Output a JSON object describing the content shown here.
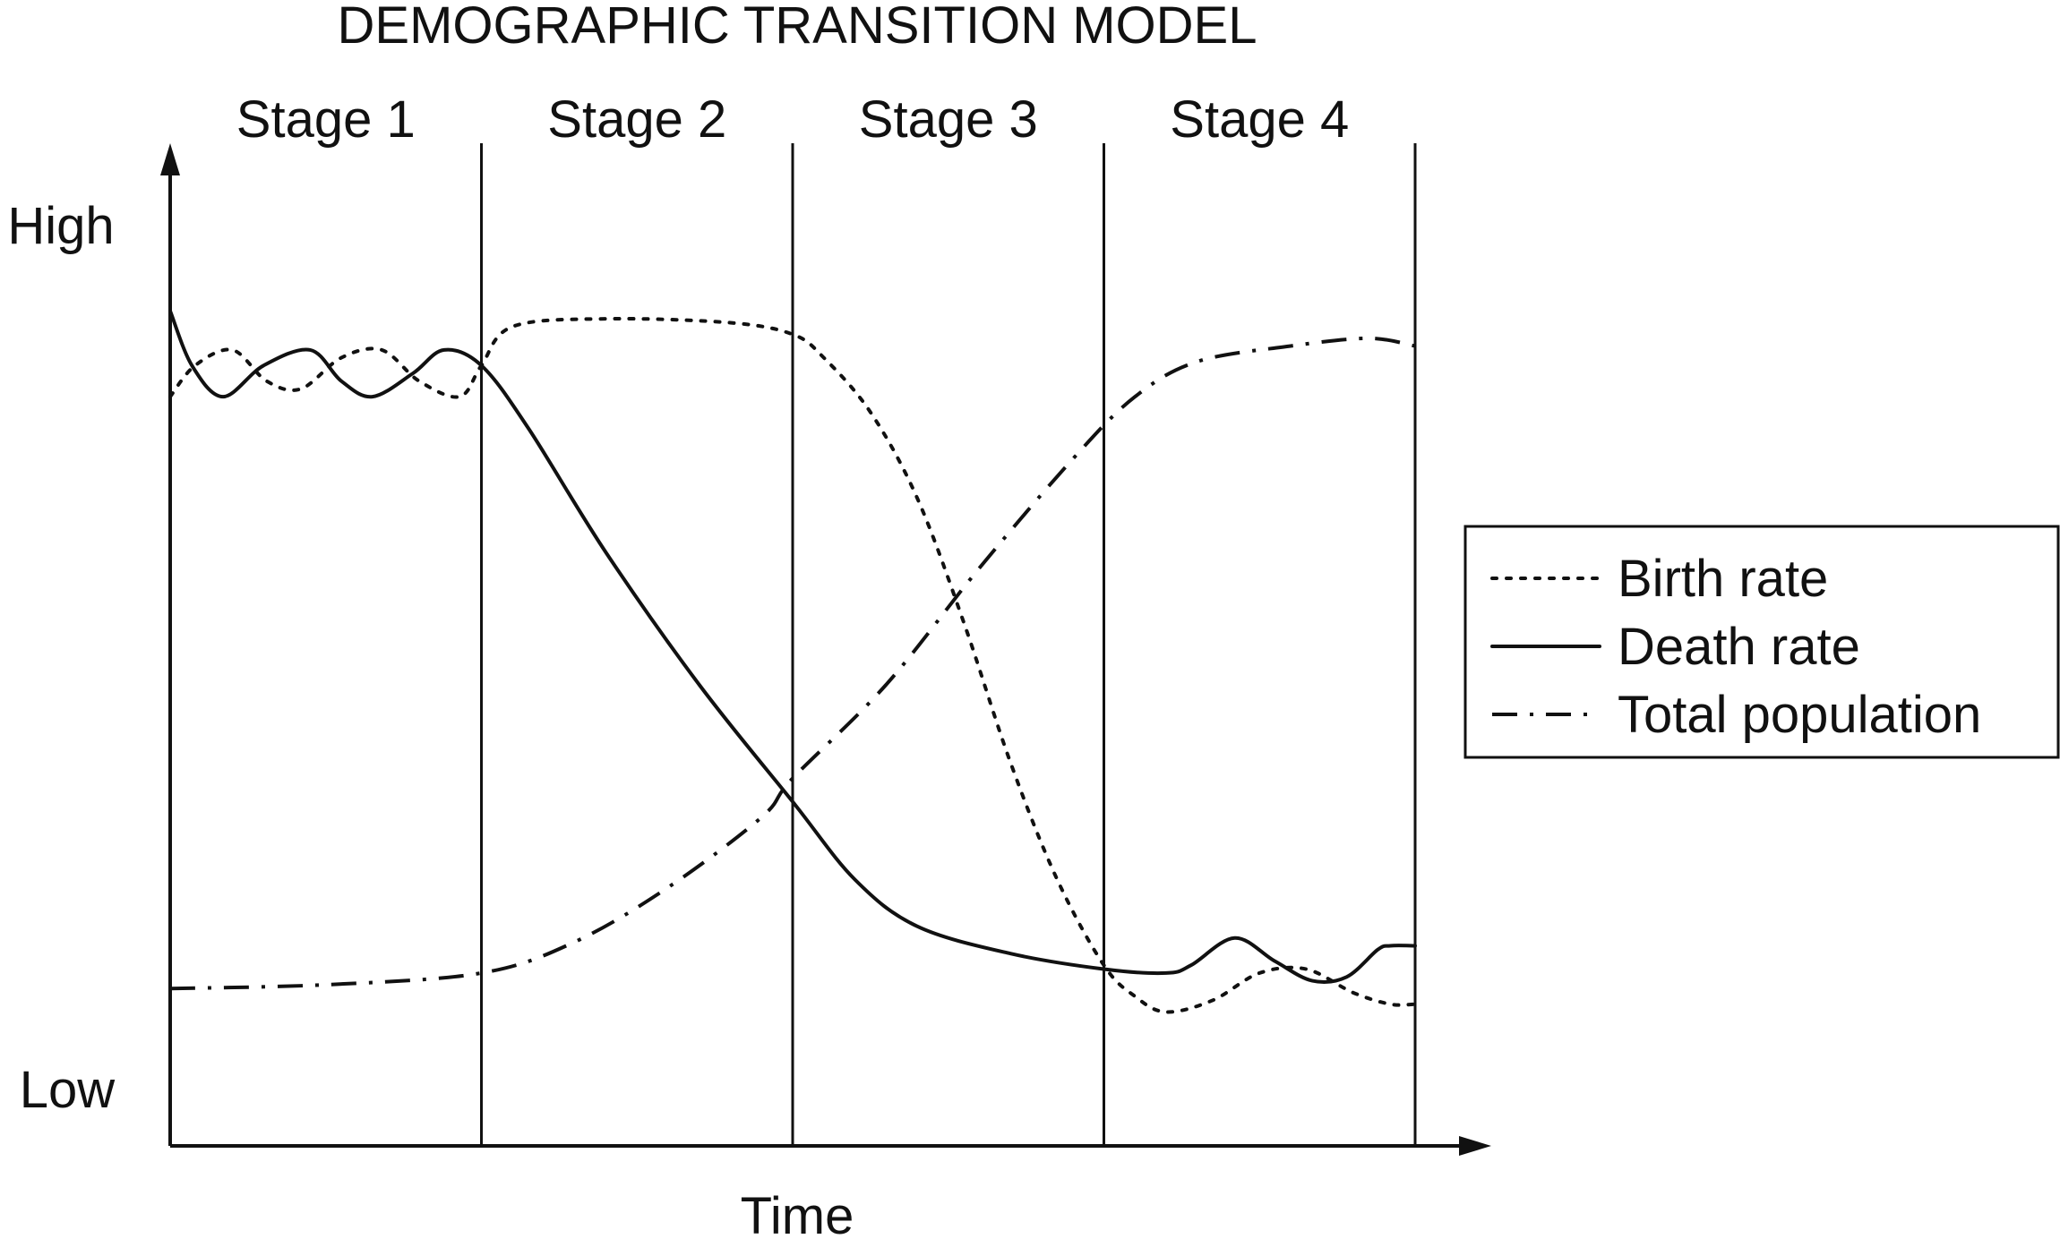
{
  "chart_data": {
    "type": "line",
    "title": "DEMOGRAPHIC TRANSITION MODEL",
    "xlabel": "Time",
    "ylabel": "",
    "y_tick_labels": {
      "high": "High",
      "low": "Low"
    },
    "stages": [
      "Stage 1",
      "Stage 2",
      "Stage 3",
      "Stage 4"
    ],
    "x_range": [
      0,
      4
    ],
    "y_range": [
      0,
      100
    ],
    "grid": false,
    "legend_position": "right",
    "series": [
      {
        "name": "Birth rate",
        "style": "dotted",
        "points": [
          [
            0.0,
            87
          ],
          [
            0.08,
            91
          ],
          [
            0.2,
            93
          ],
          [
            0.31,
            89
          ],
          [
            0.42,
            88
          ],
          [
            0.55,
            92
          ],
          [
            0.68,
            93
          ],
          [
            0.8,
            89
          ],
          [
            0.93,
            87
          ],
          [
            1.0,
            91
          ],
          [
            1.1,
            96
          ],
          [
            1.4,
            97
          ],
          [
            1.8,
            96.5
          ],
          [
            2.0,
            95
          ],
          [
            2.1,
            92
          ],
          [
            2.25,
            85
          ],
          [
            2.4,
            74
          ],
          [
            2.55,
            58
          ],
          [
            2.7,
            40
          ],
          [
            2.85,
            25
          ],
          [
            3.0,
            14
          ],
          [
            3.1,
            10
          ],
          [
            3.2,
            8
          ],
          [
            3.35,
            9.5
          ],
          [
            3.5,
            13
          ],
          [
            3.65,
            13.5
          ],
          [
            3.8,
            10.5
          ],
          [
            3.92,
            9
          ],
          [
            4.0,
            9
          ]
        ]
      },
      {
        "name": "Death rate",
        "style": "solid",
        "points": [
          [
            0.0,
            98
          ],
          [
            0.07,
            91
          ],
          [
            0.17,
            87
          ],
          [
            0.3,
            91
          ],
          [
            0.45,
            93
          ],
          [
            0.55,
            89
          ],
          [
            0.65,
            87
          ],
          [
            0.78,
            90
          ],
          [
            0.88,
            93
          ],
          [
            1.0,
            91
          ],
          [
            1.15,
            83
          ],
          [
            1.4,
            67
          ],
          [
            1.7,
            50
          ],
          [
            2.0,
            35
          ],
          [
            2.2,
            25
          ],
          [
            2.4,
            19
          ],
          [
            2.7,
            15.5
          ],
          [
            3.0,
            13.5
          ],
          [
            3.2,
            13
          ],
          [
            3.28,
            14
          ],
          [
            3.42,
            17.5
          ],
          [
            3.55,
            14.5
          ],
          [
            3.67,
            12
          ],
          [
            3.78,
            12.5
          ],
          [
            3.88,
            16
          ],
          [
            3.92,
            16.5
          ],
          [
            4.0,
            16.5
          ]
        ]
      },
      {
        "name": "Total population",
        "style": "dash-dot",
        "points": [
          [
            0.0,
            11
          ],
          [
            0.5,
            11.5
          ],
          [
            1.0,
            13
          ],
          [
            1.3,
            17
          ],
          [
            1.6,
            24
          ],
          [
            1.9,
            33
          ],
          [
            2.0,
            38
          ],
          [
            2.3,
            50
          ],
          [
            2.6,
            65
          ],
          [
            2.9,
            79
          ],
          [
            3.1,
            87
          ],
          [
            3.3,
            91.5
          ],
          [
            3.6,
            93.5
          ],
          [
            3.85,
            94.5
          ],
          [
            4.0,
            93.5
          ]
        ]
      }
    ]
  }
}
